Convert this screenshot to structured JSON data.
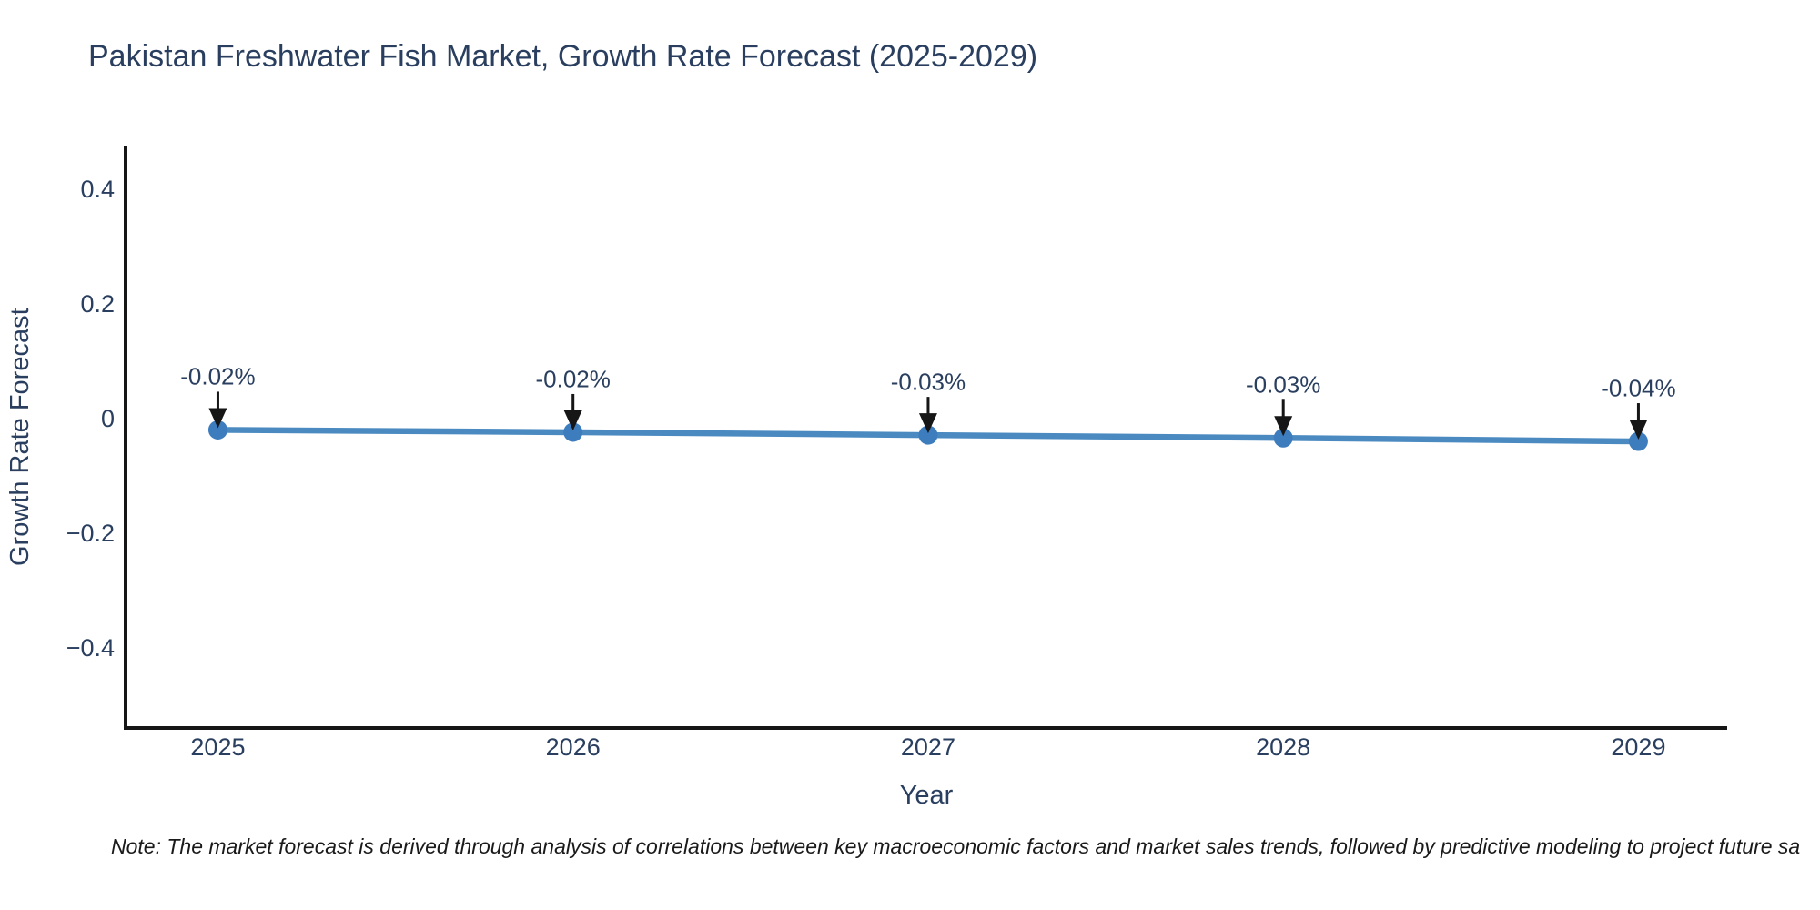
{
  "header": {
    "title": "Pakistan Freshwater Fish Market, Growth Rate Forecast (2025-2029)"
  },
  "footnote": "Note: The market forecast is derived through analysis of correlations between key macroeconomic factors and market sales trends, followed by predictive modeling to project future sa",
  "colors": {
    "title_text": "#2a3f5f",
    "tick_text": "#2a3f5f",
    "annotation_text": "#2a3f5f",
    "axis_line": "#161616",
    "arrow": "#161616",
    "line": "#4a8ac1",
    "marker": "#3d7cbd",
    "note_text": "#1a1a1a",
    "background": "#ffffff"
  },
  "chart_data": {
    "type": "line",
    "title": "Pakistan Freshwater Fish Market, Growth Rate Forecast (2025-2029)",
    "xlabel": "Year",
    "ylabel": "Growth Rate Forecast",
    "x": [
      2025,
      2026,
      2027,
      2028,
      2029
    ],
    "values": [
      -0.02,
      -0.02,
      -0.03,
      -0.03,
      -0.04
    ],
    "values_plotted_estimate": [
      -0.02,
      -0.024,
      -0.029,
      -0.034,
      -0.04
    ],
    "point_labels": [
      "-0.02%",
      "-0.02%",
      "-0.03%",
      "-0.03%",
      "-0.04%"
    ],
    "x_tick_labels": [
      "2025",
      "2026",
      "2027",
      "2028",
      "2029"
    ],
    "y_ticks": [
      0.4,
      0.2,
      0,
      -0.2,
      -0.4
    ],
    "y_tick_labels": [
      "0.4",
      "0.2",
      "0",
      "−0.2",
      "−0.4"
    ],
    "xlim": [
      2024.74,
      2029.25
    ],
    "ylim": [
      -0.54,
      0.476
    ],
    "grid": false,
    "legend": false,
    "marker_style": "circle",
    "annotation_style": "arrow-down"
  }
}
